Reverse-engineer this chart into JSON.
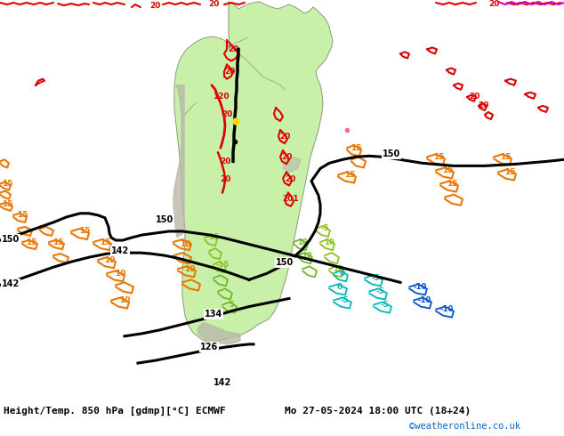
{
  "title_left": "Height/Temp. 850 hPa [gdmp][°C] ECMWF",
  "title_right": "Mo 27-05-2024 18:00 UTC (18+24)",
  "copyright": "©weatheronline.co.uk",
  "fig_width": 6.34,
  "fig_height": 4.9,
  "dpi": 100,
  "copyright_color": "#0066cc",
  "bg_color": "#e0e0e0",
  "land_color_ocean": "#dcdcdc",
  "sa_green": "#c8f0a8",
  "title_fontsize": 8.0
}
